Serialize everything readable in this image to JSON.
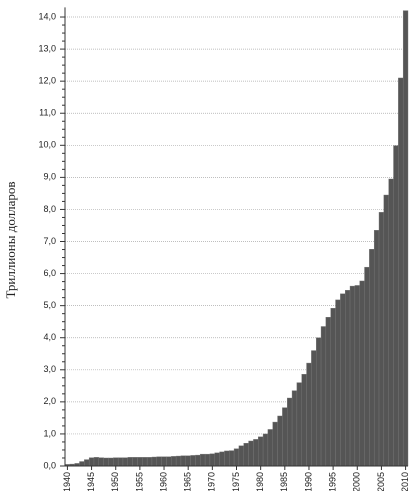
{
  "chart_data": {
    "type": "bar",
    "y_label": "Триллионы долларов",
    "x": [
      1940,
      1941,
      1942,
      1943,
      1944,
      1945,
      1946,
      1947,
      1948,
      1949,
      1950,
      1951,
      1952,
      1953,
      1954,
      1955,
      1956,
      1957,
      1958,
      1959,
      1960,
      1961,
      1962,
      1963,
      1964,
      1965,
      1966,
      1967,
      1968,
      1969,
      1970,
      1971,
      1972,
      1973,
      1974,
      1975,
      1976,
      1977,
      1978,
      1979,
      1980,
      1981,
      1982,
      1983,
      1984,
      1985,
      1986,
      1987,
      1988,
      1989,
      1990,
      1991,
      1992,
      1993,
      1994,
      1995,
      1996,
      1997,
      1998,
      1999,
      2000,
      2001,
      2002,
      2003,
      2004,
      2005,
      2006,
      2007,
      2008,
      2009,
      2010
    ],
    "values": [
      0.05,
      0.06,
      0.08,
      0.14,
      0.2,
      0.26,
      0.27,
      0.26,
      0.25,
      0.25,
      0.26,
      0.26,
      0.26,
      0.27,
      0.27,
      0.27,
      0.27,
      0.27,
      0.28,
      0.29,
      0.29,
      0.29,
      0.3,
      0.31,
      0.32,
      0.32,
      0.33,
      0.34,
      0.37,
      0.37,
      0.38,
      0.41,
      0.44,
      0.47,
      0.48,
      0.54,
      0.63,
      0.71,
      0.78,
      0.83,
      0.91,
      1.0,
      1.14,
      1.37,
      1.56,
      1.82,
      2.12,
      2.35,
      2.6,
      2.86,
      3.21,
      3.6,
      4.0,
      4.35,
      4.64,
      4.92,
      5.18,
      5.37,
      5.48,
      5.61,
      5.63,
      5.77,
      6.2,
      6.76,
      7.35,
      7.91,
      8.45,
      8.95,
      9.99,
      12.1,
      14.2
    ],
    "color": "#555555",
    "xlim": [
      1939.5,
      2010.5
    ],
    "xticks": [
      1940,
      1945,
      1950,
      1955,
      1960,
      1965,
      1970,
      1975,
      1980,
      1985,
      1990,
      1995,
      2000,
      2005,
      2010
    ],
    "ylim": [
      0,
      14.3
    ],
    "yticks": [
      {
        "value": 0,
        "label": "0,0"
      },
      {
        "value": 1,
        "label": "1,0"
      },
      {
        "value": 2,
        "label": "2,0"
      },
      {
        "value": 3,
        "label": "3,0"
      },
      {
        "value": 4,
        "label": "4,0"
      },
      {
        "value": 5,
        "label": "5,0"
      },
      {
        "value": 6,
        "label": "6,0"
      },
      {
        "value": 7,
        "label": "7,0"
      },
      {
        "value": 8,
        "label": "8,0"
      },
      {
        "value": 9,
        "label": "9,0"
      },
      {
        "value": 10,
        "label": "10,0"
      },
      {
        "value": 11,
        "label": "11,0"
      },
      {
        "value": 12,
        "label": "12,0"
      },
      {
        "value": 13,
        "label": "13,0"
      },
      {
        "value": 14,
        "label": "14,0"
      }
    ],
    "grid": true
  }
}
